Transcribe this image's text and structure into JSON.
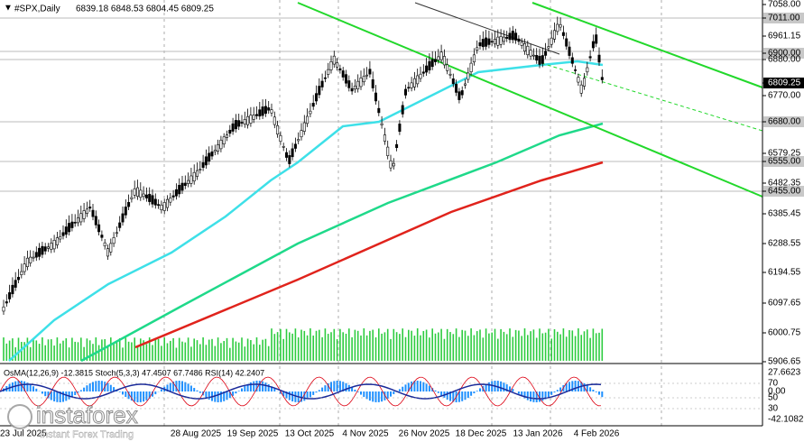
{
  "header": {
    "symbol": "#SPX,Daily",
    "ohlc": "6839.18 6848.53 6804.45 6809.25"
  },
  "price_axis": [
    "7058.00",
    "7011.00",
    "6961.15",
    "6900.00",
    "6880.00",
    "6809.25",
    "6770.00",
    "6680.00",
    "6579.25",
    "6555.00",
    "6482.35",
    "6455.00",
    "6385.45",
    "6288.55",
    "6194.55",
    "6097.65",
    "6000.75",
    "5906.65"
  ],
  "indicator": {
    "label": "OsMA(12,26,9) -12.3815  Stoch(5,3,3) 47.4507 67.7486  RSI(14) 42.2407",
    "axis": [
      "27.6623",
      "70",
      "0.00",
      "50",
      "30",
      "-42.1082"
    ]
  },
  "dates": [
    "23 Jul 2025",
    "28 Aug 2025",
    "19 Sep 2025",
    "13 Oct 2025",
    "4 Nov 2025",
    "26 Nov 2025",
    "18 Dec 2025",
    "13 Jan 2026",
    "4 Feb 2026"
  ],
  "logo": {
    "name": "instaforex",
    "tagline": "Instant Forex Trading"
  }
}
